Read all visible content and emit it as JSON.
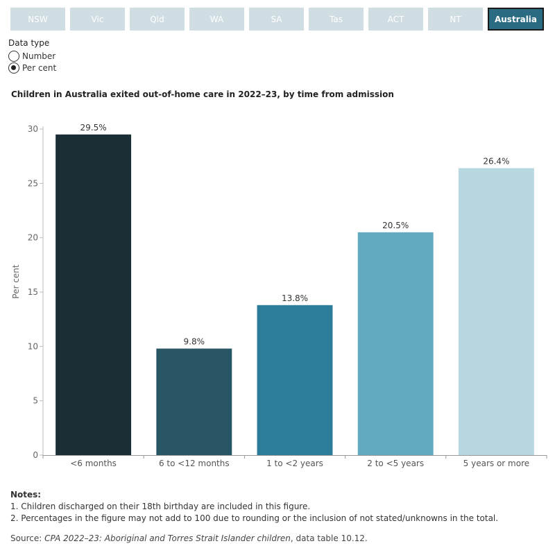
{
  "tabs": [
    "NSW",
    "Vic",
    "Qld",
    "WA",
    "SA",
    "Tas",
    "ACT",
    "NT",
    "Australia"
  ],
  "active_tab": "Australia",
  "data_type": {
    "title": "Data type",
    "options": [
      "Number",
      "Per cent"
    ],
    "selected": "Per cent"
  },
  "chart_data": {
    "type": "bar",
    "title": "Children in Australia exited out-of-home care in 2022–23, by time from admission",
    "categories": [
      "<6 months",
      "6 to <12 months",
      "1 to <2 years",
      "2 to <5 years",
      "5 years or more"
    ],
    "values": [
      29.5,
      9.8,
      13.8,
      20.5,
      26.4
    ],
    "data_labels": [
      "29.5%",
      "9.8%",
      "13.8%",
      "20.5%",
      "26.4%"
    ],
    "colors": [
      "#1c2e35",
      "#285664",
      "#2b7d99",
      "#62aac2",
      "#b7d7e1"
    ],
    "xlabel": "",
    "ylabel": "Per cent",
    "ylim": [
      0,
      30
    ],
    "yticks": [
      0,
      5,
      10,
      15,
      20,
      25,
      30
    ],
    "grid": false
  },
  "notes": {
    "title": "Notes:",
    "items": [
      "1. Children discharged on their 18th birthday are included in this figure.",
      "2. Percentages in the figure may not add to 100 due to rounding or the inclusion of not stated/unknowns in the total."
    ]
  },
  "source": {
    "prefix": "Source: ",
    "title": "CPA 2022–23: Aboriginal and Torres Strait Islander children",
    "suffix": ", data table 10.12."
  }
}
